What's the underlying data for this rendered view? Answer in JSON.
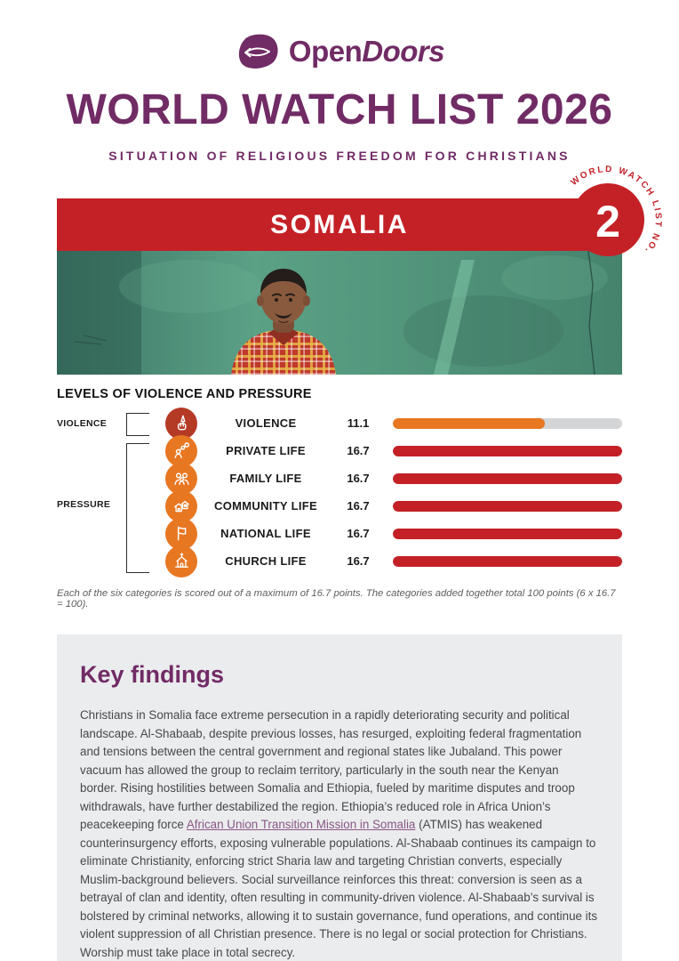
{
  "brand": {
    "logo_open": "Open",
    "logo_doors": "Doors"
  },
  "header": {
    "title": "WORLD WATCH LIST 2026",
    "subtitle": "SITUATION OF RELIGIOUS FREEDOM FOR CHRISTIANS"
  },
  "country": {
    "name": "SOMALIA",
    "rank": "2",
    "rank_ring_label": "WORLD WATCH LIST NO."
  },
  "chart_data": {
    "type": "bar",
    "title": "LEVELS OF VIOLENCE AND PRESSURE",
    "max_value": 16.7,
    "categories": [
      "VIOLENCE",
      "PRIVATE LIFE",
      "FAMILY LIFE",
      "COMMUNITY LIFE",
      "NATIONAL LIFE",
      "CHURCH LIFE"
    ],
    "values": [
      11.1,
      16.7,
      16.7,
      16.7,
      16.7,
      16.7
    ],
    "icons": [
      "violence-icon",
      "private-life-icon",
      "family-life-icon",
      "community-life-icon",
      "national-life-icon",
      "church-life-icon"
    ],
    "groups": [
      {
        "label": "VIOLENCE",
        "row_span": [
          0,
          0
        ]
      },
      {
        "label": "PRESSURE",
        "row_span": [
          1,
          5
        ]
      }
    ],
    "colors": {
      "violence_bar": "#E87722",
      "pressure_bar": "#C42127",
      "bar_track": "#D3D5D6",
      "violence_icon_bg": "#B53A26",
      "pressure_icon_bg": "#E87722"
    },
    "xlim": [
      0,
      16.7
    ],
    "legend": "none"
  },
  "footnote": "Each of the six categories is scored out of a maximum of 16.7 points. The categories added together total 100 points (6 x 16.7 = 100).",
  "key_findings": {
    "heading": "Key findings",
    "body_before_link": "Christians in Somalia face extreme persecution in a rapidly deteriorating security and political landscape. Al-Shabaab, despite previous losses, has resurged, exploiting federal fragmentation and tensions between the central government and regional states like Jubaland. This power vacuum has allowed the group to reclaim territory, particularly in the south near the Kenyan border. Rising hostilities between Somalia and Ethiopia, fueled by maritime disputes and troop withdrawals, have further destabilized the region. Ethiopia’s reduced role in Africa Union’s peacekeeping force ",
    "link_text": "African Union Transition Mission in Somalia",
    "body_after_link": " (ATMIS) has weakened counterinsurgency efforts, exposing vulnerable populations. Al-Shabaab continues its campaign to eliminate Christianity, enforcing strict Sharia law and targeting Christian converts, especially Muslim-background believers. Social surveillance reinforces this threat: conversion is seen as a betrayal of clan and identity, often resulting in community-driven violence. Al-Shabaab’s survival is bolstered by criminal networks, allowing it to sustain governance, fund operations, and continue its violent suppression of all Christian presence. There is no legal or social protection for Christians. Worship must take place in total secrecy."
  },
  "theme": {
    "purple": "#712B65",
    "red": "#C42127",
    "orange": "#E87722",
    "keybox_bg": "#EBECEE"
  }
}
